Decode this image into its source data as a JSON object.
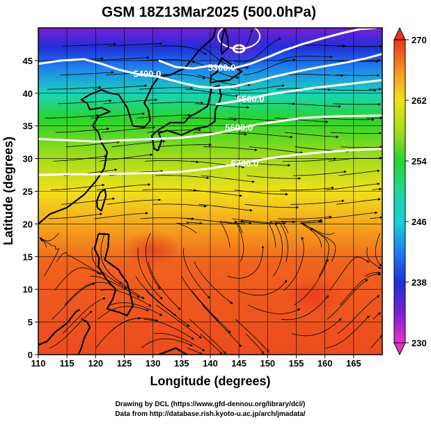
{
  "chart_data": {
    "type": "heatmap",
    "title": "GSM 18Z13Mar2025 (500.0hPa)",
    "xlabel": "Longitude (degrees)",
    "ylabel": "Latitude  (degrees)",
    "xlim": [
      110,
      170
    ],
    "ylim": [
      0,
      50
    ],
    "x_ticks": [
      110,
      115,
      120,
      125,
      130,
      135,
      140,
      145,
      150,
      155,
      160,
      165
    ],
    "y_ticks": [
      0,
      5,
      10,
      15,
      20,
      25,
      30,
      35,
      40,
      45
    ],
    "grid": true,
    "colorbar": {
      "min": 230,
      "max": 270,
      "ticks": [
        230,
        238,
        246,
        254,
        262,
        270
      ],
      "stops": [
        {
          "value": 230,
          "color": "#e633cc"
        },
        {
          "value": 234,
          "color": "#7a1fd6"
        },
        {
          "value": 238,
          "color": "#1f2fd8"
        },
        {
          "value": 242,
          "color": "#1f7ff0"
        },
        {
          "value": 246,
          "color": "#16d0d8"
        },
        {
          "value": 250,
          "color": "#1ed89a"
        },
        {
          "value": 254,
          "color": "#2ad42a"
        },
        {
          "value": 258,
          "color": "#a6dc1a"
        },
        {
          "value": 262,
          "color": "#f2e01a"
        },
        {
          "value": 265,
          "color": "#f5a81c"
        },
        {
          "value": 268,
          "color": "#f0621e"
        },
        {
          "value": 270,
          "color": "#e8341e"
        }
      ]
    },
    "field_bands": [
      {
        "lat": 50,
        "value": 234
      },
      {
        "lat": 47,
        "value": 238
      },
      {
        "lat": 44,
        "value": 242
      },
      {
        "lat": 40,
        "value": 248
      },
      {
        "lat": 36,
        "value": 254
      },
      {
        "lat": 30,
        "value": 258
      },
      {
        "lat": 25,
        "value": 262
      },
      {
        "lat": 20,
        "value": 265
      },
      {
        "lat": 14,
        "value": 268
      },
      {
        "lat": 0,
        "value": 269
      }
    ],
    "contours": [
      {
        "label": "5300.0",
        "label_pos": [
          142,
          44
        ],
        "points": [
          [
            131,
            45
          ],
          [
            134,
            44
          ],
          [
            137,
            43.8
          ],
          [
            140,
            44.2
          ],
          [
            142,
            44
          ],
          [
            144,
            43.8
          ],
          [
            147,
            44.5
          ],
          [
            150,
            45.5
          ],
          [
            153,
            46.6
          ],
          [
            156,
            47.5
          ],
          [
            160,
            48.5
          ],
          [
            163,
            49.2
          ],
          [
            166,
            49.8
          ],
          [
            169,
            50
          ]
        ]
      },
      {
        "label": "5400.0",
        "label_pos": [
          129,
          43
        ],
        "points": [
          [
            110,
            44.5
          ],
          [
            114,
            45
          ],
          [
            118,
            45.2
          ],
          [
            121,
            44.5
          ],
          [
            124,
            43.6
          ],
          [
            127,
            43
          ],
          [
            131,
            42.5
          ],
          [
            135,
            41.6
          ],
          [
            138,
            41
          ],
          [
            141,
            40.8
          ],
          [
            144,
            41
          ],
          [
            148,
            41.8
          ],
          [
            151,
            42.5
          ],
          [
            155,
            43.3
          ],
          [
            159,
            44
          ],
          [
            163,
            44.6
          ],
          [
            167,
            45.3
          ],
          [
            170,
            46
          ]
        ]
      },
      {
        "label": "5500.0",
        "label_pos": [
          147,
          39.2
        ],
        "points": [
          [
            141,
            38.3
          ],
          [
            144,
            38.7
          ],
          [
            147,
            39.2
          ],
          [
            150,
            39.8
          ],
          [
            154,
            40.3
          ],
          [
            158,
            40.8
          ],
          [
            162,
            41.2
          ],
          [
            166,
            41.6
          ],
          [
            170,
            42
          ]
        ]
      },
      {
        "label": "5600.0",
        "label_pos": [
          145,
          34.8
        ],
        "points": [
          [
            110,
            33
          ],
          [
            115,
            32.8
          ],
          [
            120,
            32.6
          ],
          [
            125,
            32.8
          ],
          [
            130,
            33
          ],
          [
            135,
            33.2
          ],
          [
            140,
            33.7
          ],
          [
            144,
            34.4
          ],
          [
            148,
            35.2
          ],
          [
            152,
            35.7
          ],
          [
            156,
            36.2
          ],
          [
            160,
            36.4
          ],
          [
            164,
            36.5
          ],
          [
            170,
            36.6
          ]
        ]
      },
      {
        "label": "5700.0",
        "label_pos": [
          146,
          29.3
        ],
        "points": [
          [
            110,
            27.5
          ],
          [
            115,
            27.6
          ],
          [
            120,
            27.6
          ],
          [
            125,
            27.7
          ],
          [
            130,
            27.8
          ],
          [
            135,
            28
          ],
          [
            140,
            28.5
          ],
          [
            145,
            29.2
          ],
          [
            150,
            30
          ],
          [
            155,
            30.6
          ],
          [
            160,
            31
          ],
          [
            165,
            31.3
          ],
          [
            170,
            31.5
          ]
        ]
      }
    ],
    "low_center": {
      "lon": 145,
      "lat": 46.8,
      "value": 5200
    },
    "warm_spots": [
      {
        "lon": 130,
        "lat": 16,
        "value": 269.5
      },
      {
        "lon": 158,
        "lat": 9,
        "value": 269
      }
    ]
  },
  "credits": {
    "line1": "Drawing by DCL (https://www.gfd-dennou.org/library/dcl/)",
    "line2": "Data from http://database.rish.kyoto-u.ac.jp/arch/jmadata/"
  },
  "colors": {
    "coast": "#000000",
    "grid": "#000000",
    "contour": "#ffffff",
    "stream": "#000000"
  }
}
